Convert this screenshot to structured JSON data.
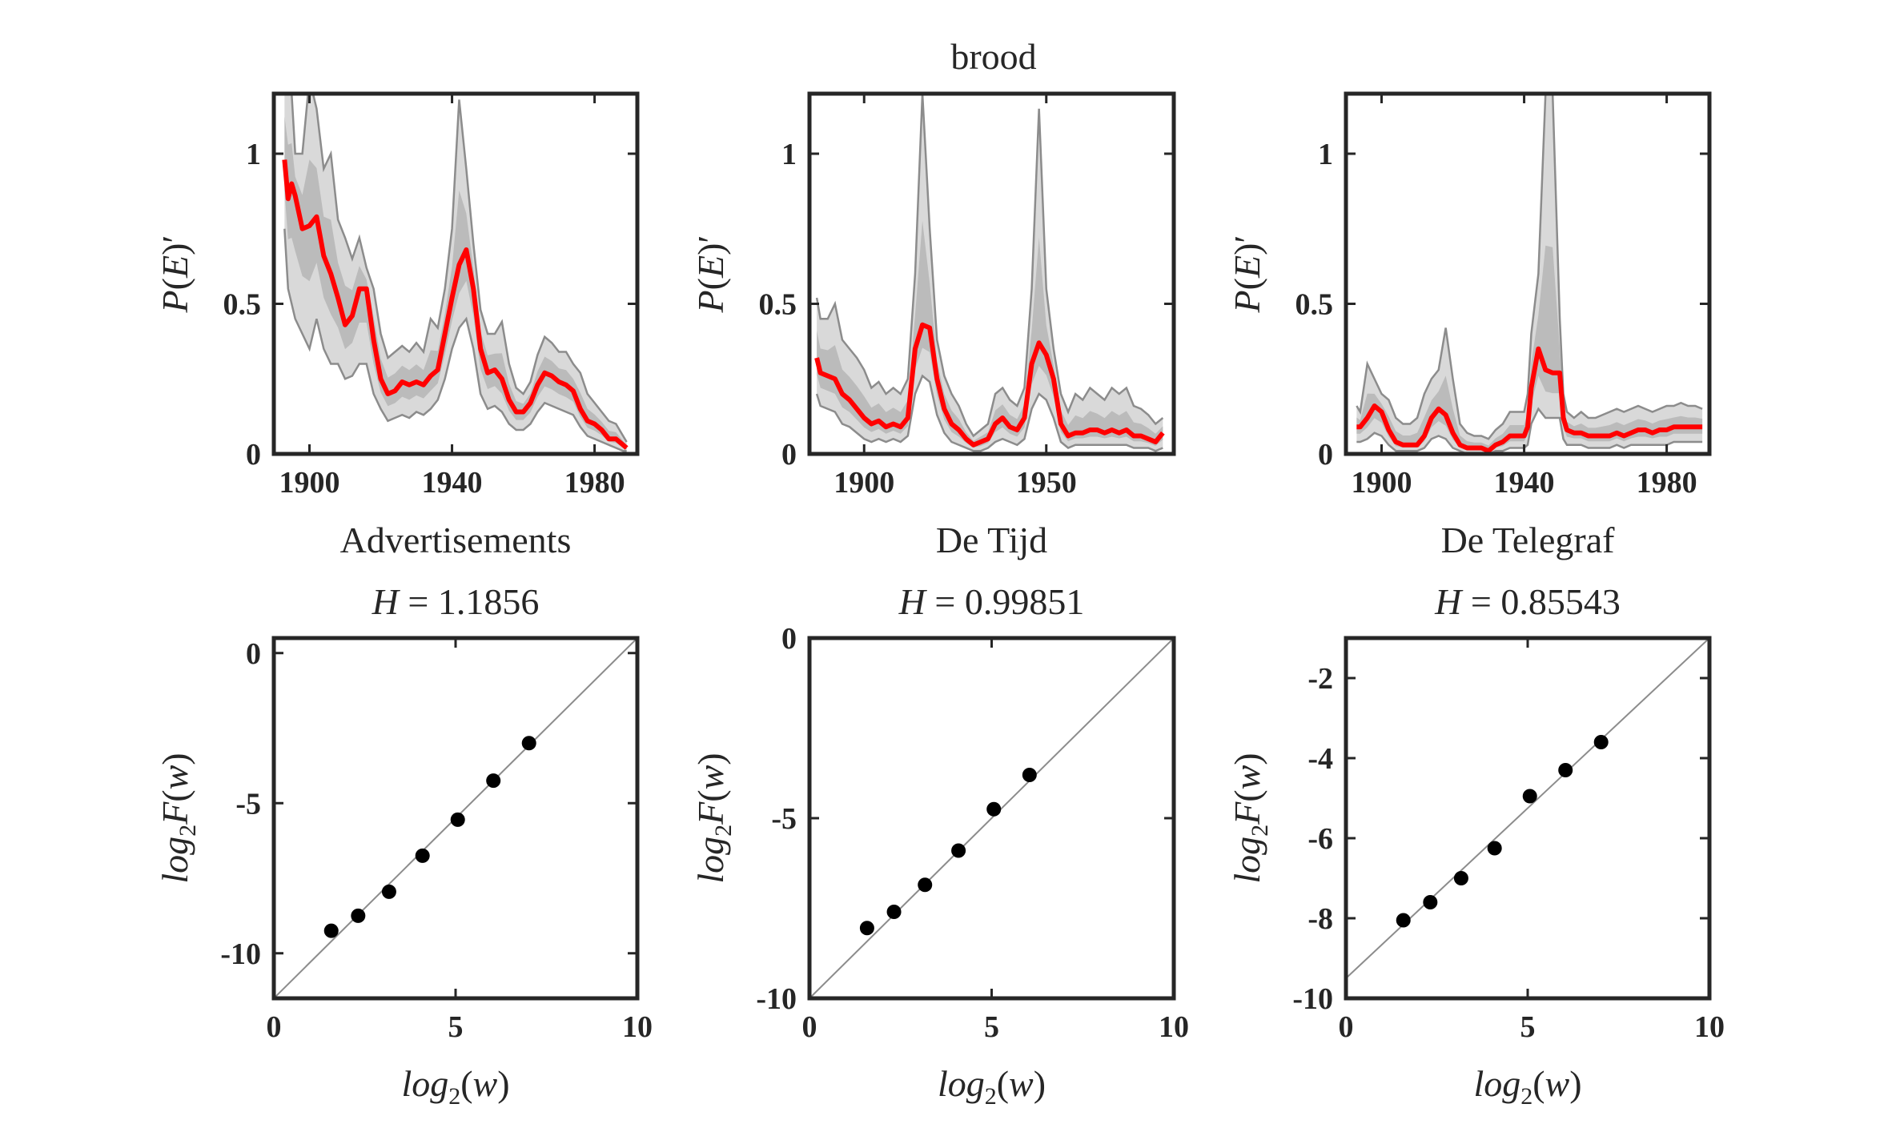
{
  "figure": {
    "title": "brood",
    "accent_color": "#ff0000",
    "band_color": "#d9d9d9",
    "band_inner_color": "#b0b0b0",
    "band_edge_color": "#8c8c8c",
    "point_color": "#000000"
  },
  "chart_data": [
    {
      "type": "line",
      "panel": "top-left",
      "xlabel": "Advertisements",
      "ylabel": "P(E)′",
      "xlim": [
        1890,
        1992
      ],
      "ylim": [
        0,
        1.2
      ],
      "xticks": [
        1900,
        1940,
        1980
      ],
      "yticks": [
        0,
        0.5,
        1
      ],
      "ytick_labels": [
        "0",
        "0.5",
        "1"
      ],
      "series": [
        {
          "x": [
            1893,
            1894,
            1895,
            1896,
            1898,
            1900,
            1902,
            1904,
            1906,
            1908,
            1910,
            1912,
            1914,
            1916,
            1918,
            1920,
            1922,
            1924,
            1926,
            1928,
            1930,
            1932,
            1934,
            1936,
            1938,
            1940,
            1942,
            1944,
            1946,
            1948,
            1950,
            1952,
            1954,
            1956,
            1958,
            1960,
            1962,
            1964,
            1966,
            1968,
            1970,
            1972,
            1974,
            1976,
            1978,
            1980,
            1982,
            1984,
            1986,
            1988,
            1989
          ],
          "y": [
            0.98,
            0.85,
            0.9,
            0.86,
            0.75,
            0.76,
            0.79,
            0.66,
            0.6,
            0.52,
            0.43,
            0.46,
            0.55,
            0.55,
            0.38,
            0.25,
            0.2,
            0.21,
            0.24,
            0.23,
            0.24,
            0.23,
            0.26,
            0.28,
            0.4,
            0.52,
            0.63,
            0.68,
            0.55,
            0.35,
            0.27,
            0.28,
            0.25,
            0.18,
            0.14,
            0.14,
            0.17,
            0.23,
            0.27,
            0.26,
            0.24,
            0.23,
            0.21,
            0.15,
            0.11,
            0.1,
            0.08,
            0.05,
            0.05,
            0.03,
            0.02
          ]
        }
      ],
      "band_upper": [
        1.3,
        1.25,
        1.2,
        1.0,
        1.0,
        1.25,
        1.15,
        0.95,
        1.0,
        0.78,
        0.72,
        0.65,
        0.72,
        0.62,
        0.55,
        0.4,
        0.32,
        0.34,
        0.36,
        0.34,
        0.37,
        0.34,
        0.45,
        0.42,
        0.55,
        0.75,
        1.18,
        0.95,
        0.7,
        0.48,
        0.4,
        0.4,
        0.44,
        0.3,
        0.22,
        0.2,
        0.24,
        0.33,
        0.39,
        0.37,
        0.34,
        0.34,
        0.3,
        0.27,
        0.2,
        0.17,
        0.14,
        0.11,
        0.1,
        0.06,
        0.04
      ],
      "band_lower": [
        0.75,
        0.55,
        0.5,
        0.45,
        0.4,
        0.35,
        0.45,
        0.35,
        0.3,
        0.3,
        0.25,
        0.26,
        0.3,
        0.3,
        0.2,
        0.15,
        0.11,
        0.12,
        0.13,
        0.12,
        0.14,
        0.13,
        0.15,
        0.18,
        0.25,
        0.35,
        0.42,
        0.45,
        0.35,
        0.2,
        0.15,
        0.16,
        0.14,
        0.1,
        0.08,
        0.08,
        0.1,
        0.14,
        0.17,
        0.16,
        0.15,
        0.14,
        0.13,
        0.09,
        0.06,
        0.05,
        0.04,
        0.03,
        0.02,
        0.01,
        0.01
      ]
    },
    {
      "type": "line",
      "panel": "top-middle",
      "xlabel": "De Tijd",
      "ylabel": "P(E)′",
      "xlim": [
        1885,
        1985
      ],
      "ylim": [
        0,
        1.2
      ],
      "xticks": [
        1900,
        1950
      ],
      "yticks": [
        0,
        0.5,
        1
      ],
      "ytick_labels": [
        "0",
        "0.5",
        "1"
      ],
      "series": [
        {
          "x": [
            1887,
            1888,
            1890,
            1892,
            1894,
            1896,
            1898,
            1900,
            1902,
            1904,
            1906,
            1908,
            1910,
            1912,
            1914,
            1916,
            1918,
            1920,
            1922,
            1924,
            1926,
            1928,
            1930,
            1932,
            1934,
            1936,
            1938,
            1940,
            1942,
            1944,
            1946,
            1948,
            1950,
            1952,
            1954,
            1956,
            1958,
            1960,
            1962,
            1964,
            1966,
            1968,
            1970,
            1972,
            1974,
            1976,
            1978,
            1980,
            1982
          ],
          "y": [
            0.32,
            0.27,
            0.26,
            0.25,
            0.2,
            0.18,
            0.15,
            0.12,
            0.1,
            0.11,
            0.09,
            0.1,
            0.09,
            0.12,
            0.35,
            0.43,
            0.42,
            0.25,
            0.15,
            0.1,
            0.08,
            0.05,
            0.03,
            0.04,
            0.05,
            0.1,
            0.12,
            0.09,
            0.08,
            0.12,
            0.3,
            0.37,
            0.33,
            0.25,
            0.1,
            0.06,
            0.07,
            0.07,
            0.08,
            0.08,
            0.07,
            0.08,
            0.07,
            0.08,
            0.06,
            0.06,
            0.05,
            0.04,
            0.07
          ]
        }
      ],
      "band_upper": [
        0.52,
        0.45,
        0.45,
        0.5,
        0.38,
        0.35,
        0.32,
        0.28,
        0.22,
        0.24,
        0.2,
        0.22,
        0.2,
        0.25,
        0.6,
        1.2,
        0.75,
        0.38,
        0.26,
        0.2,
        0.16,
        0.1,
        0.06,
        0.08,
        0.1,
        0.2,
        0.22,
        0.18,
        0.16,
        0.22,
        0.55,
        1.15,
        0.55,
        0.35,
        0.2,
        0.14,
        0.2,
        0.18,
        0.22,
        0.2,
        0.18,
        0.22,
        0.2,
        0.22,
        0.16,
        0.15,
        0.13,
        0.1,
        0.12
      ],
      "band_lower": [
        0.2,
        0.16,
        0.15,
        0.14,
        0.1,
        0.09,
        0.07,
        0.05,
        0.04,
        0.05,
        0.04,
        0.05,
        0.04,
        0.06,
        0.2,
        0.26,
        0.24,
        0.13,
        0.07,
        0.04,
        0.03,
        0.02,
        0.01,
        0.01,
        0.02,
        0.04,
        0.05,
        0.04,
        0.03,
        0.05,
        0.15,
        0.2,
        0.18,
        0.12,
        0.04,
        0.02,
        0.03,
        0.03,
        0.03,
        0.03,
        0.03,
        0.03,
        0.03,
        0.03,
        0.02,
        0.02,
        0.02,
        0.01,
        0.02
      ]
    },
    {
      "type": "line",
      "panel": "top-right",
      "xlabel": "De Telegraf",
      "ylabel": "P(E)′",
      "xlim": [
        1890,
        1992
      ],
      "ylim": [
        0,
        1.2
      ],
      "xticks": [
        1900,
        1940,
        1980
      ],
      "yticks": [
        0,
        0.5,
        1
      ],
      "ytick_labels": [
        "0",
        "0.5",
        "1"
      ],
      "series": [
        {
          "x": [
            1893,
            1894,
            1896,
            1898,
            1900,
            1902,
            1904,
            1906,
            1908,
            1910,
            1912,
            1914,
            1916,
            1918,
            1920,
            1922,
            1924,
            1926,
            1928,
            1930,
            1932,
            1934,
            1936,
            1938,
            1940,
            1941,
            1942,
            1944,
            1946,
            1948,
            1950,
            1951,
            1952,
            1954,
            1956,
            1958,
            1960,
            1962,
            1964,
            1966,
            1968,
            1970,
            1972,
            1974,
            1976,
            1978,
            1980,
            1982,
            1984,
            1986,
            1988,
            1990
          ],
          "y": [
            0.09,
            0.09,
            0.12,
            0.16,
            0.14,
            0.08,
            0.04,
            0.03,
            0.03,
            0.03,
            0.06,
            0.12,
            0.15,
            0.13,
            0.07,
            0.03,
            0.02,
            0.02,
            0.02,
            0.01,
            0.03,
            0.04,
            0.06,
            0.06,
            0.06,
            0.09,
            0.22,
            0.35,
            0.28,
            0.27,
            0.27,
            0.12,
            0.08,
            0.07,
            0.07,
            0.06,
            0.06,
            0.06,
            0.06,
            0.07,
            0.06,
            0.07,
            0.08,
            0.08,
            0.07,
            0.08,
            0.08,
            0.09,
            0.09,
            0.09,
            0.09,
            0.09
          ]
        }
      ],
      "band_upper": [
        0.16,
        0.14,
        0.3,
        0.25,
        0.2,
        0.18,
        0.12,
        0.1,
        0.1,
        0.12,
        0.2,
        0.25,
        0.28,
        0.42,
        0.25,
        0.1,
        0.07,
        0.06,
        0.06,
        0.05,
        0.08,
        0.1,
        0.14,
        0.14,
        0.14,
        0.2,
        0.4,
        0.6,
        1.2,
        1.2,
        0.45,
        0.2,
        0.14,
        0.12,
        0.14,
        0.12,
        0.12,
        0.13,
        0.14,
        0.15,
        0.14,
        0.15,
        0.16,
        0.15,
        0.14,
        0.15,
        0.16,
        0.16,
        0.17,
        0.16,
        0.16,
        0.15
      ],
      "band_lower": [
        0.04,
        0.04,
        0.05,
        0.07,
        0.06,
        0.03,
        0.01,
        0.01,
        0.01,
        0.01,
        0.02,
        0.05,
        0.06,
        0.05,
        0.02,
        0.01,
        0.0,
        0.0,
        0.0,
        0.0,
        0.01,
        0.01,
        0.02,
        0.02,
        0.02,
        0.03,
        0.1,
        0.15,
        0.12,
        0.12,
        0.12,
        0.05,
        0.03,
        0.03,
        0.03,
        0.02,
        0.02,
        0.02,
        0.02,
        0.03,
        0.02,
        0.03,
        0.03,
        0.03,
        0.03,
        0.03,
        0.03,
        0.04,
        0.04,
        0.04,
        0.04,
        0.04
      ]
    },
    {
      "type": "scatter",
      "panel": "bottom-left",
      "title": "H = 1.1856",
      "title_value": "1.1856",
      "xlabel": "log2(w)",
      "ylabel": "log2F(w)",
      "xlim": [
        0,
        10
      ],
      "ylim": [
        -11.5,
        0.5
      ],
      "xticks": [
        0,
        5,
        10
      ],
      "yticks": [
        -10,
        -5,
        0
      ],
      "ytick_labels": [
        "-10",
        "-5",
        "0"
      ],
      "x": [
        1.58,
        2.32,
        3.17,
        4.09,
        5.06,
        6.04,
        7.02
      ],
      "y": [
        -9.25,
        -8.75,
        -7.95,
        -6.75,
        -5.55,
        -4.25,
        -3.0
      ],
      "reference_line": {
        "x": [
          0,
          10
        ],
        "y": [
          -11.5,
          0.5
        ]
      }
    },
    {
      "type": "scatter",
      "panel": "bottom-middle",
      "title": "H = 0.99851",
      "title_value": "0.99851",
      "xlabel": "log2(w)",
      "ylabel": "log2F(w)",
      "xlim": [
        0,
        10
      ],
      "ylim": [
        -10,
        0
      ],
      "xticks": [
        0,
        5,
        10
      ],
      "yticks": [
        -10,
        -5,
        0
      ],
      "ytick_labels": [
        "-10",
        "-5",
        "0"
      ],
      "x": [
        1.58,
        2.32,
        3.17,
        4.09,
        5.06,
        6.04
      ],
      "y": [
        -8.05,
        -7.6,
        -6.85,
        -5.9,
        -4.75,
        -3.8
      ],
      "reference_line": {
        "x": [
          0,
          10
        ],
        "y": [
          -10,
          0
        ]
      }
    },
    {
      "type": "scatter",
      "panel": "bottom-right",
      "title": "H = 0.85543",
      "title_value": "0.85543",
      "xlabel": "log2(w)",
      "ylabel": "log2F(w)",
      "xlim": [
        0,
        10
      ],
      "ylim": [
        -10,
        -1
      ],
      "xticks": [
        0,
        5,
        10
      ],
      "yticks": [
        -10,
        -8,
        -6,
        -4,
        -2
      ],
      "ytick_labels": [
        "-10",
        "-8",
        "-6",
        "-4",
        "-2"
      ],
      "x": [
        1.58,
        2.32,
        3.17,
        4.09,
        5.06,
        6.04,
        7.02
      ],
      "y": [
        -8.05,
        -7.6,
        -7.0,
        -6.25,
        -4.95,
        -4.3,
        -3.6
      ],
      "reference_line": {
        "x": [
          0,
          10
        ],
        "y": [
          -9.5,
          -1.0
        ]
      }
    }
  ]
}
